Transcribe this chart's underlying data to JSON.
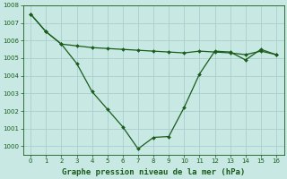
{
  "line1_x": [
    0,
    1,
    2,
    3,
    4,
    5,
    6,
    7,
    8,
    9,
    10,
    11,
    12,
    13,
    14,
    15,
    16
  ],
  "line1_y": [
    1007.5,
    1006.5,
    1005.8,
    1005.7,
    1005.6,
    1005.55,
    1005.5,
    1005.45,
    1005.4,
    1005.35,
    1005.3,
    1005.4,
    1005.35,
    1005.3,
    1005.2,
    1005.4,
    1005.2
  ],
  "line2_x": [
    0,
    1,
    2,
    3,
    4,
    5,
    6,
    7,
    8,
    9,
    10,
    11,
    12,
    13,
    14,
    15,
    16
  ],
  "line2_y": [
    1007.5,
    1006.5,
    1005.8,
    1004.7,
    1003.1,
    1002.1,
    1001.1,
    999.85,
    1000.5,
    1000.55,
    1002.2,
    1004.1,
    1005.4,
    1005.35,
    1004.9,
    1005.5,
    1005.2
  ],
  "line_color": "#1a5c1a",
  "bg_color": "#c8e8e4",
  "grid_color": "#aacece",
  "xlabel": "Graphe pression niveau de la mer (hPa)",
  "ylim": [
    999.5,
    1008.0
  ],
  "xlim": [
    -0.5,
    16.5
  ],
  "yticks": [
    1000,
    1001,
    1002,
    1003,
    1004,
    1005,
    1006,
    1007,
    1008
  ],
  "xticks": [
    0,
    1,
    2,
    3,
    4,
    5,
    6,
    7,
    8,
    9,
    10,
    11,
    12,
    13,
    14,
    15,
    16
  ],
  "figsize": [
    3.2,
    2.0
  ],
  "dpi": 100
}
